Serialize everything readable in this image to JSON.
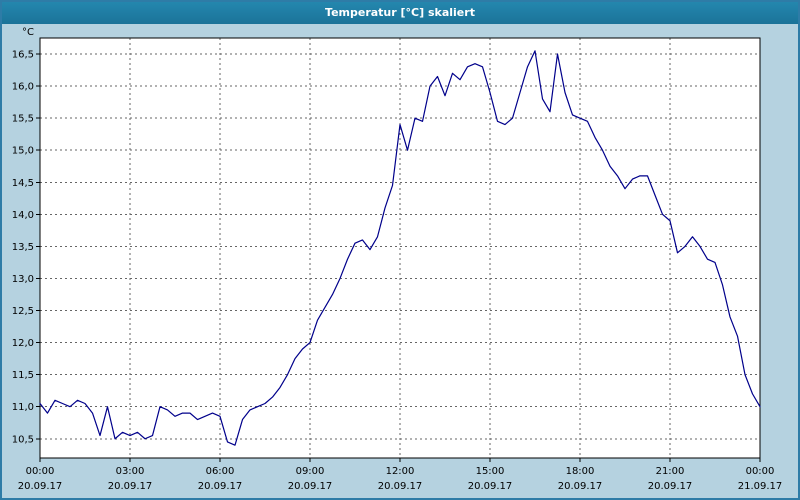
{
  "window": {
    "title": "Temperatur [°C] skaliert"
  },
  "colors": {
    "titlebar": "#1b7399",
    "titlebar_light": "#2487ae",
    "window_border": "#2e7ca7",
    "background": "#b5d2e0",
    "plot_bg": "#ffffff",
    "plot_border": "#000000",
    "grid": "#666666",
    "line": "#00008b",
    "tick": "#000000"
  },
  "chart_data": {
    "type": "line",
    "title": "Temperatur [°C] skaliert",
    "unit_label": "°C",
    "xlabel": "",
    "ylabel": "°C",
    "xlim": [
      0,
      24
    ],
    "ylim": [
      10.2,
      16.75
    ],
    "grid": "dashed",
    "legend": "none",
    "x_ticks": [
      {
        "hour": 0,
        "time": "00:00",
        "date": "20.09.17"
      },
      {
        "hour": 3,
        "time": "03:00",
        "date": "20.09.17"
      },
      {
        "hour": 6,
        "time": "06:00",
        "date": "20.09.17"
      },
      {
        "hour": 9,
        "time": "09:00",
        "date": "20.09.17"
      },
      {
        "hour": 12,
        "time": "12:00",
        "date": "20.09.17"
      },
      {
        "hour": 15,
        "time": "15:00",
        "date": "20.09.17"
      },
      {
        "hour": 18,
        "time": "18:00",
        "date": "20.09.17"
      },
      {
        "hour": 21,
        "time": "21:00",
        "date": "20.09.17"
      },
      {
        "hour": 24,
        "time": "00:00",
        "date": "21.09.17"
      }
    ],
    "y_ticks": [
      {
        "value": 16.5,
        "label": "16,5"
      },
      {
        "value": 16.0,
        "label": "16,0"
      },
      {
        "value": 15.5,
        "label": "15,5"
      },
      {
        "value": 15.0,
        "label": "15,0"
      },
      {
        "value": 14.5,
        "label": "14,5"
      },
      {
        "value": 14.0,
        "label": "14,0"
      },
      {
        "value": 13.5,
        "label": "13,5"
      },
      {
        "value": 13.0,
        "label": "13,0"
      },
      {
        "value": 12.5,
        "label": "12,5"
      },
      {
        "value": 12.0,
        "label": "12,0"
      },
      {
        "value": 11.5,
        "label": "11,5"
      },
      {
        "value": 11.0,
        "label": "11,0"
      },
      {
        "value": 10.5,
        "label": "10,5"
      }
    ],
    "series": [
      {
        "name": "Temperatur",
        "color": "#00008b",
        "points": [
          [
            0.0,
            11.05
          ],
          [
            0.25,
            10.9
          ],
          [
            0.5,
            11.1
          ],
          [
            0.75,
            11.05
          ],
          [
            1.0,
            11.0
          ],
          [
            1.25,
            11.1
          ],
          [
            1.5,
            11.05
          ],
          [
            1.75,
            10.9
          ],
          [
            2.0,
            10.55
          ],
          [
            2.25,
            11.0
          ],
          [
            2.5,
            10.5
          ],
          [
            2.75,
            10.6
          ],
          [
            3.0,
            10.55
          ],
          [
            3.25,
            10.6
          ],
          [
            3.5,
            10.5
          ],
          [
            3.75,
            10.55
          ],
          [
            4.0,
            11.0
          ],
          [
            4.25,
            10.95
          ],
          [
            4.5,
            10.85
          ],
          [
            4.75,
            10.9
          ],
          [
            5.0,
            10.9
          ],
          [
            5.25,
            10.8
          ],
          [
            5.5,
            10.85
          ],
          [
            5.75,
            10.9
          ],
          [
            6.0,
            10.85
          ],
          [
            6.25,
            10.45
          ],
          [
            6.5,
            10.4
          ],
          [
            6.75,
            10.8
          ],
          [
            7.0,
            10.95
          ],
          [
            7.25,
            11.0
          ],
          [
            7.5,
            11.05
          ],
          [
            7.75,
            11.15
          ],
          [
            8.0,
            11.3
          ],
          [
            8.25,
            11.5
          ],
          [
            8.5,
            11.75
          ],
          [
            8.75,
            11.9
          ],
          [
            9.0,
            12.0
          ],
          [
            9.25,
            12.35
          ],
          [
            9.5,
            12.55
          ],
          [
            9.75,
            12.75
          ],
          [
            10.0,
            13.0
          ],
          [
            10.25,
            13.3
          ],
          [
            10.5,
            13.55
          ],
          [
            10.75,
            13.6
          ],
          [
            11.0,
            13.45
          ],
          [
            11.25,
            13.65
          ],
          [
            11.5,
            14.1
          ],
          [
            11.75,
            14.45
          ],
          [
            12.0,
            15.4
          ],
          [
            12.25,
            15.0
          ],
          [
            12.5,
            15.5
          ],
          [
            12.75,
            15.45
          ],
          [
            13.0,
            16.0
          ],
          [
            13.25,
            16.15
          ],
          [
            13.5,
            15.85
          ],
          [
            13.75,
            16.2
          ],
          [
            14.0,
            16.1
          ],
          [
            14.25,
            16.3
          ],
          [
            14.5,
            16.35
          ],
          [
            14.75,
            16.3
          ],
          [
            15.0,
            15.9
          ],
          [
            15.25,
            15.45
          ],
          [
            15.5,
            15.4
          ],
          [
            15.75,
            15.5
          ],
          [
            16.0,
            15.9
          ],
          [
            16.25,
            16.3
          ],
          [
            16.5,
            16.55
          ],
          [
            16.75,
            15.8
          ],
          [
            17.0,
            15.6
          ],
          [
            17.25,
            16.5
          ],
          [
            17.5,
            15.9
          ],
          [
            17.75,
            15.55
          ],
          [
            18.0,
            15.5
          ],
          [
            18.25,
            15.45
          ],
          [
            18.5,
            15.2
          ],
          [
            18.75,
            15.0
          ],
          [
            19.0,
            14.75
          ],
          [
            19.25,
            14.6
          ],
          [
            19.5,
            14.4
          ],
          [
            19.75,
            14.55
          ],
          [
            20.0,
            14.6
          ],
          [
            20.25,
            14.6
          ],
          [
            20.5,
            14.3
          ],
          [
            20.75,
            14.0
          ],
          [
            21.0,
            13.9
          ],
          [
            21.25,
            13.4
          ],
          [
            21.5,
            13.5
          ],
          [
            21.75,
            13.65
          ],
          [
            22.0,
            13.5
          ],
          [
            22.25,
            13.3
          ],
          [
            22.5,
            13.25
          ],
          [
            22.75,
            12.9
          ],
          [
            23.0,
            12.4
          ],
          [
            23.25,
            12.1
          ],
          [
            23.5,
            11.5
          ],
          [
            23.75,
            11.2
          ],
          [
            24.0,
            11.0
          ]
        ]
      }
    ]
  }
}
